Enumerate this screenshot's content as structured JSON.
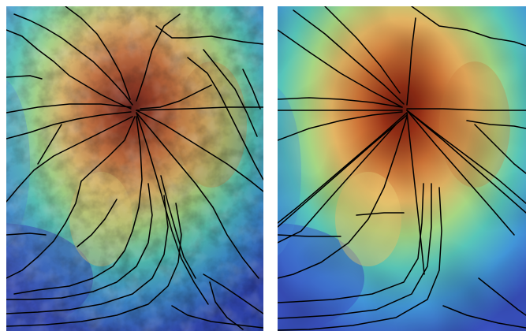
{
  "panels": [
    {
      "id": "left",
      "relief": "hillshaded-terrain",
      "description_kind": "fine-resolution elevation map with drainage network",
      "colors": {
        "low": "#3a53c8",
        "low_mid": "#3fa0d8",
        "mid": "#58c8a8",
        "mid_high": "#d8cc6a",
        "high": "#c8783a",
        "peak": "#6a1a10"
      }
    },
    {
      "id": "right",
      "relief": "smoothed-terrain",
      "description_kind": "coarse-resolution elevation map with straightened drainage network",
      "colors": {
        "low": "#4a63d0",
        "low_mid": "#4aaee0",
        "mid": "#6ad0b0",
        "mid_high": "#e6d070",
        "high": "#cf7a3a",
        "peak": "#7a1d10"
      }
    }
  ]
}
